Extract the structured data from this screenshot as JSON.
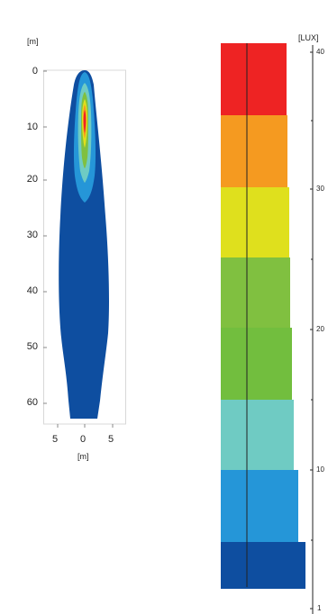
{
  "iso_plot": {
    "y_unit": "[m]",
    "x_unit": "[m]",
    "y_ticks": [
      "0",
      "10",
      "20",
      "30",
      "40",
      "50",
      "60"
    ],
    "x_ticks": [
      "5",
      "0",
      "5"
    ]
  },
  "legend": {
    "unit": "[LUX]",
    "scale_labels": [
      "40",
      "30",
      "20",
      "10",
      "1"
    ],
    "bands_top_to_bottom": [
      {
        "color": "#ee2323"
      },
      {
        "color": "#f59a20"
      },
      {
        "color": "#dfe01d"
      },
      {
        "color": "#80c040"
      },
      {
        "color": "#72be3e"
      },
      {
        "color": "#6fcbc3"
      },
      {
        "color": "#2596d8"
      },
      {
        "color": "#0e4ea0"
      }
    ]
  }
}
